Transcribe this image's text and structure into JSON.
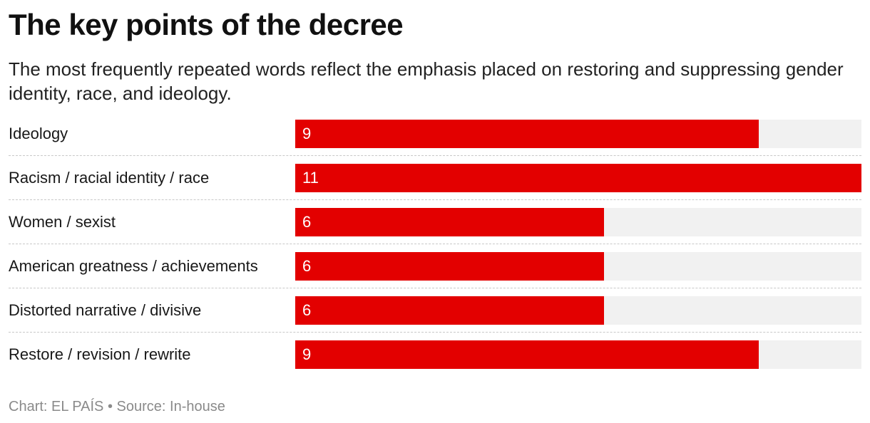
{
  "header": {
    "title": "The key points of the decree",
    "subtitle": "The most frequently repeated words reflect the emphasis placed on restoring and suppressing gender identity, race, and ideology."
  },
  "footer": {
    "chart_credit": "Chart: EL PAÍS",
    "separator": "•",
    "source": "Source: In-house"
  },
  "colors": {
    "bar": "#e30000",
    "track": "#f1f1f1"
  },
  "chart_data": {
    "type": "bar",
    "orientation": "horizontal",
    "title": "The key points of the decree",
    "subtitle": "The most frequently repeated words reflect the emphasis placed on restoring and suppressing gender identity, race, and ideology.",
    "categories": [
      "Ideology",
      "Racism / racial identity / race",
      "Women / sexist",
      "American greatness / achievements",
      "Distorted narrative / divisive",
      "Restore / revision / rewrite"
    ],
    "values": [
      9,
      11,
      6,
      6,
      6,
      9
    ],
    "xlim": [
      0,
      11
    ],
    "grid": false,
    "legend": "none",
    "data_labels": "inside-start"
  }
}
